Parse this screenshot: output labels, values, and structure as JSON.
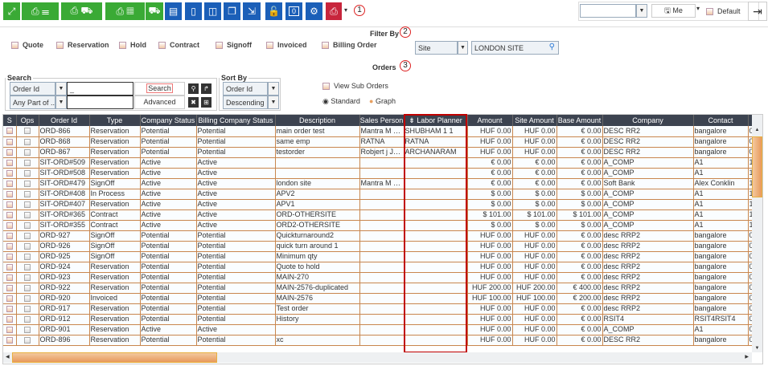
{
  "toolbar": {
    "buttons": [
      {
        "icon": "expand-icon",
        "color": "g"
      },
      {
        "icon": "print-layers-icon",
        "color": "g"
      },
      {
        "icon": "print-delivery-icon",
        "color": "g"
      },
      {
        "icon": "print-grid-icon",
        "color": "g"
      },
      {
        "icon": "hand-truck-icon",
        "color": "g"
      },
      {
        "icon": "add-document-icon",
        "color": "b"
      },
      {
        "icon": "door-icon",
        "color": "b"
      },
      {
        "icon": "split-door-icon",
        "color": "b"
      },
      {
        "icon": "copy-documents-icon",
        "color": "b"
      },
      {
        "icon": "export-icon",
        "color": "b"
      },
      {
        "icon": "unlock-icon",
        "color": "b"
      },
      {
        "icon": "chat-count-icon",
        "color": "b",
        "label": "0"
      },
      {
        "icon": "user-settings-icon",
        "color": "b"
      },
      {
        "icon": "briefcase-print-icon",
        "color": "r"
      }
    ],
    "badge1": "1",
    "view_select": "",
    "me_label": "Me",
    "default_label": "Default"
  },
  "filter": {
    "title": "Filter By",
    "badge": "2",
    "checkboxes": [
      "Quote",
      "Reservation",
      "Hold",
      "Contract",
      "Signoff",
      "Invoiced",
      "Billing Order"
    ],
    "site_select": "Site",
    "site_value": "LONDON SITE"
  },
  "orders": {
    "title": "Orders",
    "badge": "3",
    "view_sub_orders": "View Sub Orders",
    "standard": "Standard",
    "graph": "Graph",
    "view_mode": "Standard"
  },
  "search": {
    "legend": "Search",
    "field": "Order Id",
    "match": "Any Part of ...",
    "value": "_",
    "search_btn": "Search",
    "advanced_btn": "Advanced"
  },
  "sort": {
    "legend": "Sort By",
    "field": "Order Id",
    "direction": "Descending"
  },
  "colors": {
    "green": "#3aaa35",
    "blue": "#1b5fb8",
    "red": "#c8253c",
    "grid_line": "#c8864e",
    "header": "#3c4350",
    "highlight": "#c00000"
  },
  "table": {
    "columns": [
      "S",
      "Ops",
      "Order Id",
      "Type",
      "Company Status",
      "Billing Company Status",
      "Description",
      "Sales Person",
      "Labor Planner",
      "Amount",
      "Site Amount",
      "Base Amount",
      "Company",
      "Contact",
      ""
    ],
    "sorted_column": "Labor Planner",
    "rows": [
      [
        "ORD-866",
        "Reservation",
        "Potential",
        "Potential",
        "main order test",
        "Mantra M Ma...",
        "SHUBHAM 1 1",
        "HUF 0.00",
        "HUF 0.00",
        "€ 0.00",
        "DESC RR2",
        "bangalore",
        "0"
      ],
      [
        "ORD-868",
        "Reservation",
        "Potential",
        "Potential",
        "same emp",
        "RATNA",
        "RATNA",
        "HUF 0.00",
        "HUF 0.00",
        "€ 0.00",
        "DESC RR2",
        "bangalore",
        "0"
      ],
      [
        "ORD-867",
        "Reservation",
        "Potential",
        "Potential",
        "testorder",
        "Robjert j Jeff...",
        "ARCHANARAM",
        "HUF 0.00",
        "HUF 0.00",
        "€ 0.00",
        "DESC RR2",
        "bangalore",
        "0"
      ],
      [
        "SIT-ORD#509",
        "Reservation",
        "Active",
        "Active",
        "",
        "",
        "",
        "€ 0.00",
        "€ 0.00",
        "€ 0.00",
        "A_COMP",
        "A1",
        "1"
      ],
      [
        "SIT-ORD#508",
        "Reservation",
        "Active",
        "Active",
        "",
        "",
        "",
        "€ 0.00",
        "€ 0.00",
        "€ 0.00",
        "A_COMP",
        "A1",
        "1"
      ],
      [
        "SIT-ORD#479",
        "SignOff",
        "Active",
        "Active",
        "london site",
        "Mantra M Ma...",
        "",
        "€ 0.00",
        "€ 0.00",
        "€ 0.00",
        "Soft Bank",
        "Alex  Conklin",
        "1"
      ],
      [
        "SIT-ORD#408",
        "In Process",
        "Active",
        "Active",
        "APV2",
        "",
        "",
        "$ 0.00",
        "$ 0.00",
        "$ 0.00",
        "A_COMP",
        "A1",
        "1"
      ],
      [
        "SIT-ORD#407",
        "Reservation",
        "Active",
        "Active",
        "APV1",
        "",
        "",
        "$ 0.00",
        "$ 0.00",
        "$ 0.00",
        "A_COMP",
        "A1",
        "1"
      ],
      [
        "SIT-ORD#365",
        "Contract",
        "Active",
        "Active",
        "ORD-OTHERSITE",
        "",
        "",
        "$ 101.00",
        "$ 101.00",
        "$ 101.00",
        "A_COMP",
        "A1",
        "1"
      ],
      [
        "SIT-ORD#355",
        "Contract",
        "Active",
        "Active",
        "ORD2-OTHERSITE",
        "",
        "",
        "$ 0.00",
        "$ 0.00",
        "$ 0.00",
        "A_COMP",
        "A1",
        "1"
      ],
      [
        "ORD-927",
        "SignOff",
        "Potential",
        "Potential",
        "Quickturnaround2",
        "",
        "",
        "HUF 0.00",
        "HUF 0.00",
        "€ 0.00",
        "desc RRP2",
        "bangalore",
        "0"
      ],
      [
        "ORD-926",
        "SignOff",
        "Potential",
        "Potential",
        "quick turn around 1",
        "",
        "",
        "HUF 0.00",
        "HUF 0.00",
        "€ 0.00",
        "desc RRP2",
        "bangalore",
        "0"
      ],
      [
        "ORD-925",
        "SignOff",
        "Potential",
        "Potential",
        "Minimum qty",
        "",
        "",
        "HUF 0.00",
        "HUF 0.00",
        "€ 0.00",
        "desc RRP2",
        "bangalore",
        "0"
      ],
      [
        "ORD-924",
        "Reservation",
        "Potential",
        "Potential",
        "Quote to hold",
        "",
        "",
        "HUF 0.00",
        "HUF 0.00",
        "€ 0.00",
        "desc RRP2",
        "bangalore",
        "0"
      ],
      [
        "ORD-923",
        "Reservation",
        "Potential",
        "Potential",
        "MAIN-270",
        "",
        "",
        "HUF 0.00",
        "HUF 0.00",
        "€ 0.00",
        "desc RRP2",
        "bangalore",
        "0"
      ],
      [
        "ORD-922",
        "Reservation",
        "Potential",
        "Potential",
        "MAIN-2576-duplicated",
        "",
        "",
        "HUF 200.00",
        "HUF 200.00",
        "€ 400.00",
        "desc RRP2",
        "bangalore",
        "0"
      ],
      [
        "ORD-920",
        "Invoiced",
        "Potential",
        "Potential",
        "MAIN-2576",
        "",
        "",
        "HUF 100.00",
        "HUF 100.00",
        "€ 200.00",
        "desc RRP2",
        "bangalore",
        "0"
      ],
      [
        "ORD-917",
        "Reservation",
        "Potential",
        "Potential",
        "Test order",
        "",
        "",
        "HUF 0.00",
        "HUF 0.00",
        "€ 0.00",
        "desc RRP2",
        "bangalore",
        "0"
      ],
      [
        "ORD-912",
        "Reservation",
        "Potential",
        "Potential",
        "History",
        "",
        "",
        "HUF 0.00",
        "HUF 0.00",
        "€ 0.00",
        "RSIT4",
        "RSIT4RSIT4",
        "0"
      ],
      [
        "ORD-901",
        "Reservation",
        "Active",
        "Active",
        "",
        "",
        "",
        "HUF 0.00",
        "HUF 0.00",
        "€ 0.00",
        "A_COMP",
        "A1",
        "0"
      ],
      [
        "ORD-896",
        "Reservation",
        "Potential",
        "Potential",
        "xc",
        "",
        "",
        "HUF 0.00",
        "HUF 0.00",
        "€ 0.00",
        "DESC RR2",
        "bangalore",
        "0"
      ]
    ]
  }
}
